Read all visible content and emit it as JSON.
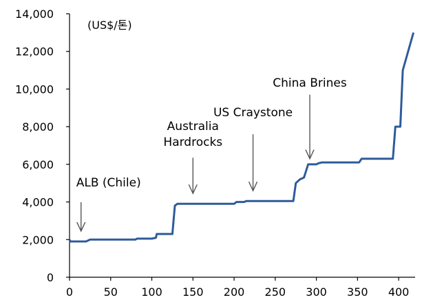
{
  "chart_data": {
    "type": "line",
    "unit_label": "(US$/톤)",
    "xlim": [
      0,
      420
    ],
    "ylim": [
      0,
      14000
    ],
    "x_ticks": [
      0,
      50,
      100,
      150,
      200,
      250,
      300,
      350,
      400
    ],
    "y_ticks": [
      0,
      2000,
      4000,
      6000,
      8000,
      10000,
      12000,
      14000
    ],
    "x_tick_labels": [
      "0",
      "50",
      "100",
      "150",
      "200",
      "250",
      "300",
      "350",
      "400"
    ],
    "y_tick_labels": [
      "0",
      "2,000",
      "4,000",
      "6,000",
      "8,000",
      "10,000",
      "12,000",
      "14,000"
    ],
    "grid": false,
    "color": "#2e5b9a",
    "series": [
      {
        "x": [
          0,
          1,
          3,
          20,
          25,
          80,
          82,
          100,
          105,
          106,
          125,
          128,
          131,
          200,
          203,
          212,
          215,
          272,
          275,
          280,
          285,
          290,
          295,
          300,
          302,
          307,
          352,
          355,
          393,
          396,
          402,
          405,
          418
        ],
        "y": [
          2000,
          1900,
          1900,
          1900,
          2000,
          2000,
          2050,
          2050,
          2100,
          2300,
          2300,
          3800,
          3900,
          3900,
          4000,
          4000,
          4050,
          4050,
          5000,
          5200,
          5300,
          6000,
          6000,
          6000,
          6050,
          6100,
          6100,
          6300,
          6300,
          8000,
          8000,
          11000,
          13000
        ]
      }
    ],
    "annotations": [
      {
        "lines": [
          "ALB (Chile)"
        ],
        "x": 14,
        "y": 2450
      },
      {
        "lines": [
          "Australia",
          "Hardrocks"
        ],
        "x": 150,
        "y": 4450
      },
      {
        "lines": [
          "US Craystone"
        ],
        "x": 223,
        "y": 4600
      },
      {
        "lines": [
          "China Brines"
        ],
        "x": 292,
        "y": 6300
      }
    ]
  }
}
